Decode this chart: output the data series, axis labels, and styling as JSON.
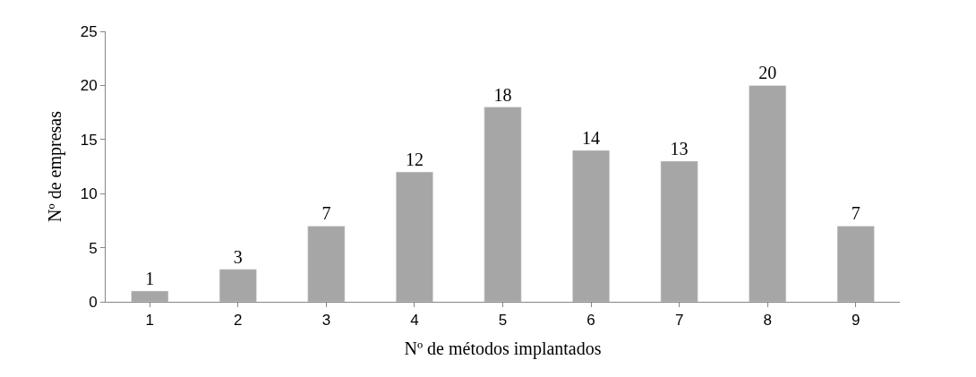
{
  "chart_data": {
    "type": "bar",
    "xlabel": "Nº de métodos implantados",
    "ylabel": "Nº de empresas",
    "categories": [
      "1",
      "2",
      "3",
      "4",
      "5",
      "6",
      "7",
      "8",
      "9"
    ],
    "values": [
      1,
      3,
      7,
      12,
      18,
      14,
      13,
      20,
      7
    ],
    "color": "#a6a6a6",
    "ylim": [
      0,
      25
    ],
    "yticks": [
      0,
      5,
      10,
      15,
      20,
      25
    ],
    "data_labels": true
  }
}
